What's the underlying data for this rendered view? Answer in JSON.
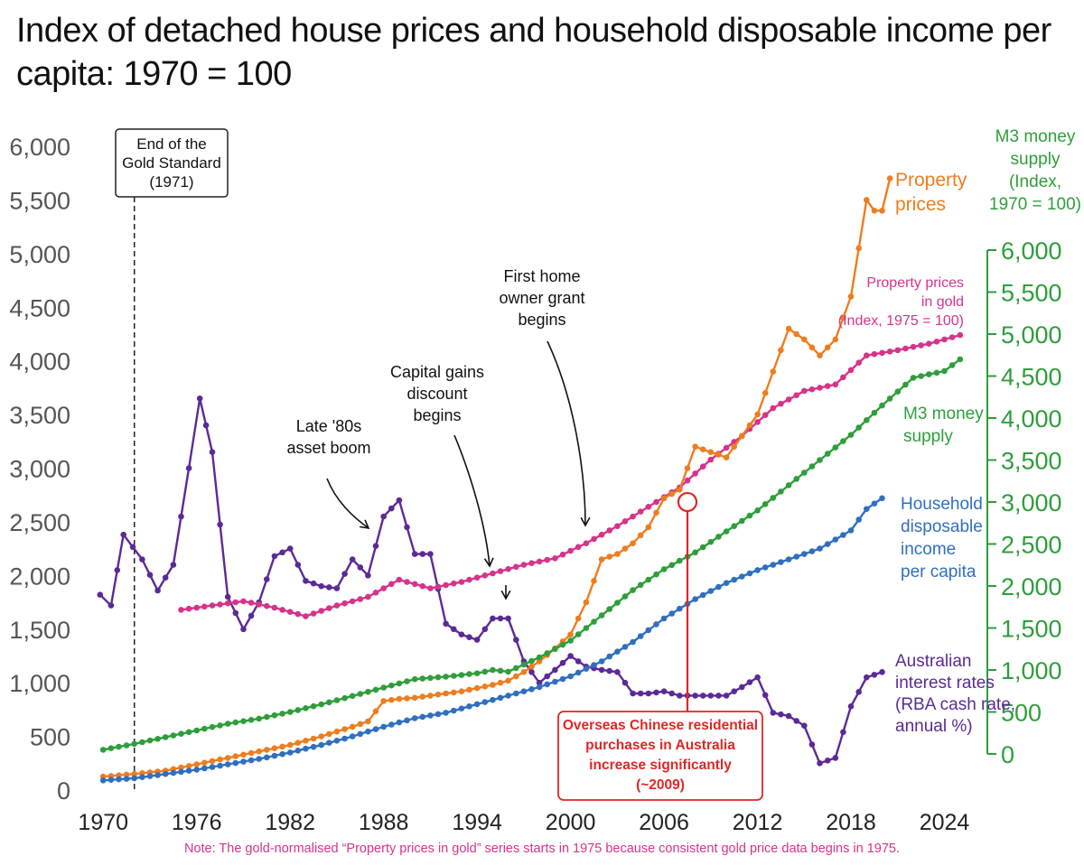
{
  "title": "Index of detached house prices and household disposable income per capita: 1970 = 100",
  "note": "Note:  The gold-normalised “Property prices in gold” series starts in 1975 because consistent gold price data begins in 1975.",
  "colors": {
    "property": "#ee7d1f",
    "gold": "#d6338a",
    "m3": "#2e9e3a",
    "income": "#2f6fbf",
    "rates": "#5b2a96",
    "axis_right": "#2e9e3a",
    "axis_left": "#555555",
    "annotation_red": "#e02626"
  },
  "chart_data": {
    "type": "line",
    "xlim": [
      1969,
      2026
    ],
    "ylim_left": [
      0,
      6000
    ],
    "ylim_right": [
      0,
      6000
    ],
    "x_ticks": [
      1970,
      1976,
      1982,
      1988,
      1994,
      2000,
      2006,
      2012,
      2018,
      2024
    ],
    "y_ticks_left": [
      "0",
      "500",
      "1,000",
      "1,500",
      "2,000",
      "2,500",
      "3,000",
      "3,500",
      "4,000",
      "4,500",
      "5,000",
      "5,500",
      "6,000"
    ],
    "y_ticks_right": [
      "0",
      "500",
      "1,000",
      "1,500",
      "2,000",
      "2,500",
      "3,000",
      "3,500",
      "4,000",
      "4,500",
      "5,000",
      "5,500",
      "6,000"
    ],
    "right_axis_title": [
      "M3 money",
      "supply",
      "(Index,",
      "1970 = 100)"
    ],
    "series": [
      {
        "key": "property",
        "name": [
          "Property",
          "prices"
        ],
        "axis": "left",
        "points": [
          [
            1970,
            125
          ],
          [
            1972,
            150
          ],
          [
            1974,
            180
          ],
          [
            1976,
            240
          ],
          [
            1978,
            300
          ],
          [
            1980,
            360
          ],
          [
            1982,
            420
          ],
          [
            1984,
            500
          ],
          [
            1986,
            590
          ],
          [
            1987,
            640
          ],
          [
            1988,
            830
          ],
          [
            1989,
            850
          ],
          [
            1990,
            860
          ],
          [
            1991,
            880
          ],
          [
            1992,
            900
          ],
          [
            1993,
            920
          ],
          [
            1994,
            950
          ],
          [
            1995,
            980
          ],
          [
            1996,
            1020
          ],
          [
            1997,
            1100
          ],
          [
            1998,
            1200
          ],
          [
            1999,
            1320
          ],
          [
            2000,
            1450
          ],
          [
            2001,
            1750
          ],
          [
            2002,
            2150
          ],
          [
            2003,
            2200
          ],
          [
            2004,
            2300
          ],
          [
            2005,
            2450
          ],
          [
            2006,
            2720
          ],
          [
            2007,
            2800
          ],
          [
            2008,
            3200
          ],
          [
            2009,
            3150
          ],
          [
            2010,
            3100
          ],
          [
            2011,
            3300
          ],
          [
            2012,
            3500
          ],
          [
            2013,
            3900
          ],
          [
            2014,
            4300
          ],
          [
            2015,
            4200
          ],
          [
            2016,
            4050
          ],
          [
            2017,
            4200
          ],
          [
            2018,
            4600
          ],
          [
            2019,
            5500
          ],
          [
            2019.5,
            5400
          ],
          [
            2020,
            5400
          ],
          [
            2020.5,
            5700
          ]
        ]
      },
      {
        "key": "gold",
        "name": [
          "Property prices",
          "in gold",
          "(Index, 1975 = 100)"
        ],
        "axis": "left",
        "points": [
          [
            1975,
            1680
          ],
          [
            1977,
            1720
          ],
          [
            1979,
            1760
          ],
          [
            1981,
            1700
          ],
          [
            1983,
            1620
          ],
          [
            1985,
            1720
          ],
          [
            1987,
            1800
          ],
          [
            1989,
            1960
          ],
          [
            1991,
            1880
          ],
          [
            1993,
            1940
          ],
          [
            1995,
            2020
          ],
          [
            1997,
            2100
          ],
          [
            1999,
            2160
          ],
          [
            2001,
            2300
          ],
          [
            2003,
            2460
          ],
          [
            2005,
            2640
          ],
          [
            2007,
            2820
          ],
          [
            2009,
            3080
          ],
          [
            2011,
            3300
          ],
          [
            2013,
            3560
          ],
          [
            2015,
            3720
          ],
          [
            2017,
            3780
          ],
          [
            2019,
            4050
          ],
          [
            2021,
            4100
          ],
          [
            2023,
            4160
          ],
          [
            2025,
            4240
          ]
        ]
      },
      {
        "key": "m3",
        "name": [
          "M3 money",
          "supply"
        ],
        "axis": "right",
        "points": [
          [
            1970,
            50
          ],
          [
            1972,
            120
          ],
          [
            1974,
            200
          ],
          [
            1976,
            280
          ],
          [
            1978,
            360
          ],
          [
            1980,
            420
          ],
          [
            1982,
            500
          ],
          [
            1984,
            590
          ],
          [
            1986,
            690
          ],
          [
            1988,
            790
          ],
          [
            1990,
            890
          ],
          [
            1992,
            920
          ],
          [
            1994,
            960
          ],
          [
            1995,
            1000
          ],
          [
            1996,
            980
          ],
          [
            1998,
            1150
          ],
          [
            2000,
            1350
          ],
          [
            2002,
            1650
          ],
          [
            2004,
            1950
          ],
          [
            2006,
            2200
          ],
          [
            2008,
            2400
          ],
          [
            2010,
            2650
          ],
          [
            2012,
            2900
          ],
          [
            2014,
            3200
          ],
          [
            2016,
            3500
          ],
          [
            2018,
            3800
          ],
          [
            2020,
            4150
          ],
          [
            2022,
            4480
          ],
          [
            2024,
            4560
          ],
          [
            2025,
            4700
          ]
        ]
      },
      {
        "key": "income",
        "name": [
          "Household",
          "disposable",
          "income",
          "per capita"
        ],
        "axis": "left",
        "points": [
          [
            1970,
            90
          ],
          [
            1972,
            110
          ],
          [
            1974,
            150
          ],
          [
            1976,
            190
          ],
          [
            1978,
            240
          ],
          [
            1980,
            290
          ],
          [
            1982,
            350
          ],
          [
            1984,
            420
          ],
          [
            1986,
            500
          ],
          [
            1988,
            590
          ],
          [
            1990,
            670
          ],
          [
            1992,
            720
          ],
          [
            1994,
            800
          ],
          [
            1996,
            880
          ],
          [
            1998,
            960
          ],
          [
            2000,
            1060
          ],
          [
            2002,
            1200
          ],
          [
            2004,
            1380
          ],
          [
            2006,
            1600
          ],
          [
            2008,
            1780
          ],
          [
            2010,
            1930
          ],
          [
            2012,
            2050
          ],
          [
            2014,
            2150
          ],
          [
            2016,
            2250
          ],
          [
            2018,
            2420
          ],
          [
            2019,
            2620
          ],
          [
            2020,
            2720
          ]
        ]
      },
      {
        "key": "rates",
        "name": [
          "Australian",
          "interest rates",
          "(RBA cash rate,",
          "annual %)"
        ],
        "axis": "left",
        "points": [
          [
            1969.8,
            1820
          ],
          [
            1970.5,
            1720
          ],
          [
            1971.3,
            2380
          ],
          [
            1972.5,
            2150
          ],
          [
            1973.5,
            1860
          ],
          [
            1974.5,
            2100
          ],
          [
            1975.5,
            3000
          ],
          [
            1976.2,
            3650
          ],
          [
            1977,
            3150
          ],
          [
            1978,
            1800
          ],
          [
            1979,
            1500
          ],
          [
            1980,
            1750
          ],
          [
            1981,
            2180
          ],
          [
            1982,
            2250
          ],
          [
            1983,
            1950
          ],
          [
            1984,
            1900
          ],
          [
            1985,
            1880
          ],
          [
            1986,
            2150
          ],
          [
            1987,
            2000
          ],
          [
            1988,
            2550
          ],
          [
            1989,
            2700
          ],
          [
            1990,
            2200
          ],
          [
            1991,
            2200
          ],
          [
            1992,
            1550
          ],
          [
            1993,
            1450
          ],
          [
            1994,
            1400
          ],
          [
            1995,
            1600
          ],
          [
            1996,
            1600
          ],
          [
            1997,
            1200
          ],
          [
            1998,
            1000
          ],
          [
            1999,
            1120
          ],
          [
            2000,
            1250
          ],
          [
            2001,
            1150
          ],
          [
            2002,
            1120
          ],
          [
            2003,
            1100
          ],
          [
            2004,
            900
          ],
          [
            2005,
            900
          ],
          [
            2006,
            920
          ],
          [
            2007,
            880
          ],
          [
            2008,
            880
          ],
          [
            2009,
            880
          ],
          [
            2010,
            880
          ],
          [
            2011,
            960
          ],
          [
            2012,
            1050
          ],
          [
            2013,
            720
          ],
          [
            2014,
            690
          ],
          [
            2015,
            600
          ],
          [
            2016,
            250
          ],
          [
            2017,
            300
          ],
          [
            2018,
            780
          ],
          [
            2019,
            1050
          ],
          [
            2020,
            1100
          ]
        ]
      }
    ],
    "annotations": [
      {
        "key": "gold_standard",
        "lines": [
          "End of the",
          "Gold Standard",
          "(1971)"
        ]
      },
      {
        "key": "asset_boom",
        "lines": [
          "Late '80s",
          "asset boom"
        ]
      },
      {
        "key": "cgt",
        "lines": [
          "Capital gains",
          "discount",
          "begins"
        ]
      },
      {
        "key": "fhog",
        "lines": [
          "First home",
          "owner grant",
          "begins"
        ]
      },
      {
        "key": "chinese",
        "lines": [
          "Overseas Chinese residential",
          "purchases in Australia",
          "increase significantly",
          "(~2009)"
        ]
      }
    ]
  }
}
